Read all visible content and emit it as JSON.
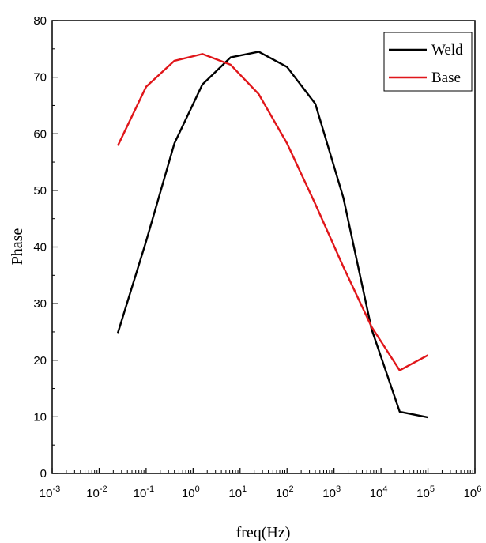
{
  "chart_data": {
    "type": "line",
    "title": "",
    "xlabel": "freq(Hz)",
    "ylabel": "Phase",
    "x_scale": "log",
    "xlim": [
      0.001,
      1000000
    ],
    "ylim": [
      0,
      80
    ],
    "x_ticks": [
      {
        "value": 0.001,
        "base": "10",
        "exp": "-3"
      },
      {
        "value": 0.01,
        "base": "10",
        "exp": "-2"
      },
      {
        "value": 0.1,
        "base": "10",
        "exp": "-1"
      },
      {
        "value": 1,
        "base": "10",
        "exp": "0"
      },
      {
        "value": 10,
        "base": "10",
        "exp": "1"
      },
      {
        "value": 100,
        "base": "10",
        "exp": "2"
      },
      {
        "value": 1000,
        "base": "10",
        "exp": "3"
      },
      {
        "value": 10000,
        "base": "10",
        "exp": "4"
      },
      {
        "value": 100000,
        "base": "10",
        "exp": "5"
      },
      {
        "value": 1000000,
        "base": "10",
        "exp": "6"
      }
    ],
    "y_ticks": [
      "0",
      "10",
      "20",
      "30",
      "40",
      "50",
      "60",
      "70",
      "80"
    ],
    "grid": false,
    "legend_position": "top-right",
    "series": [
      {
        "name": "Weld",
        "color": "#000000",
        "points": [
          [
            0.025,
            24.8
          ],
          [
            0.1,
            41
          ],
          [
            0.4,
            58.3
          ],
          [
            1.58,
            68.7
          ],
          [
            6.3,
            73.5
          ],
          [
            25,
            74.5
          ],
          [
            100,
            71.8
          ],
          [
            400,
            65.3
          ],
          [
            1580,
            48.7
          ],
          [
            6300,
            25.5
          ],
          [
            25000,
            10.9
          ],
          [
            100000,
            9.9
          ]
        ]
      },
      {
        "name": "Base",
        "color": "#e0161a",
        "points": [
          [
            0.025,
            57.9
          ],
          [
            0.1,
            68.3
          ],
          [
            0.4,
            72.9
          ],
          [
            1.58,
            74.1
          ],
          [
            6.3,
            72.2
          ],
          [
            25,
            67
          ],
          [
            100,
            58.3
          ],
          [
            400,
            47.6
          ],
          [
            1580,
            36.5
          ],
          [
            6300,
            25.9
          ],
          [
            25000,
            18.2
          ],
          [
            100000,
            20.9
          ]
        ]
      }
    ]
  }
}
